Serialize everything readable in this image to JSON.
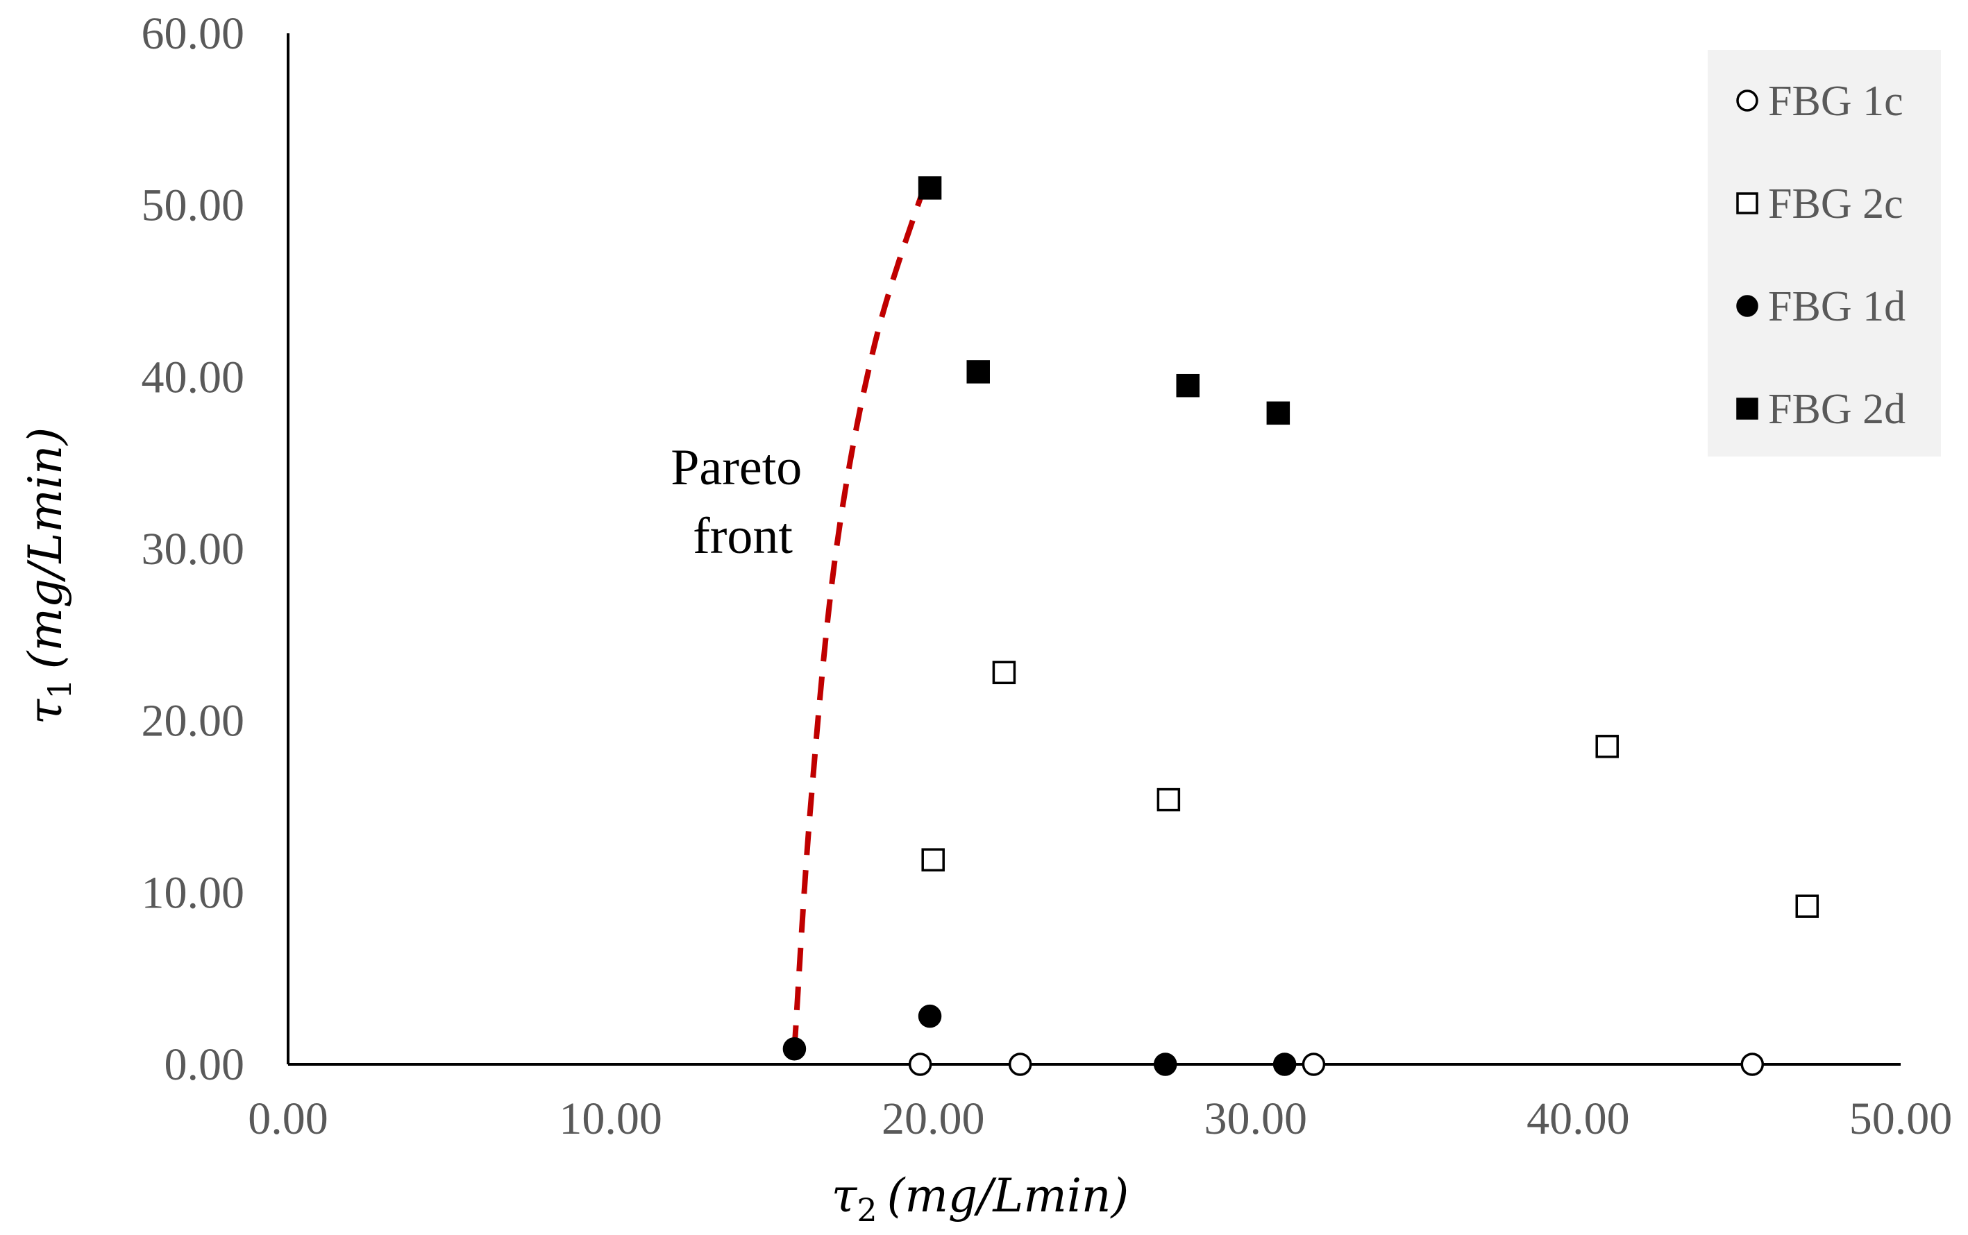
{
  "chart_data": {
    "type": "scatter",
    "title": "",
    "xlabel": "τ₂ (mg/Lmin)",
    "ylabel": "τ₁ (mg/Lmin)",
    "xlabel_parts": {
      "symbol": "τ",
      "sub": "2",
      "unit": "(mg/Lmin)"
    },
    "ylabel_parts": {
      "symbol": "τ",
      "sub": "1",
      "unit": "(mg/Lmin)"
    },
    "xlim": [
      0,
      50
    ],
    "ylim": [
      0,
      60
    ],
    "x_ticks": [
      "0.00",
      "10.00",
      "20.00",
      "30.00",
      "40.00",
      "50.00"
    ],
    "y_ticks": [
      "0.00",
      "10.00",
      "20.00",
      "30.00",
      "40.00",
      "50.00",
      "60.00"
    ],
    "x_tick_values": [
      0,
      10,
      20,
      30,
      40,
      50
    ],
    "y_tick_values": [
      0,
      10,
      20,
      30,
      40,
      50,
      60
    ],
    "grid": false,
    "legend_position": "top-right",
    "series": [
      {
        "name": "FBG 1c",
        "marker": "open-circle",
        "points": [
          [
            19.6,
            0.0
          ],
          [
            22.7,
            0.0
          ],
          [
            31.8,
            0.0
          ],
          [
            45.4,
            0.0
          ]
        ]
      },
      {
        "name": "FBG 2c",
        "marker": "open-square",
        "points": [
          [
            20.0,
            11.9
          ],
          [
            22.2,
            22.8
          ],
          [
            27.3,
            15.4
          ],
          [
            40.9,
            18.5
          ],
          [
            47.1,
            9.2
          ]
        ]
      },
      {
        "name": "FBG 1d",
        "marker": "filled-circle",
        "points": [
          [
            15.7,
            0.9
          ],
          [
            19.9,
            2.8
          ],
          [
            27.2,
            0.0
          ],
          [
            30.9,
            0.0
          ]
        ]
      },
      {
        "name": "FBG 2d",
        "marker": "filled-square",
        "points": [
          [
            19.9,
            51.0
          ],
          [
            21.4,
            40.3
          ],
          [
            27.9,
            39.5
          ],
          [
            30.7,
            37.9
          ]
        ]
      }
    ],
    "pareto_front": {
      "label_lines": [
        "Pareto",
        "front"
      ],
      "color": "#C00000",
      "points": [
        [
          15.7,
          0.9
        ],
        [
          16.2,
          15.0
        ],
        [
          17.0,
          30.0
        ],
        [
          18.2,
          42.0
        ],
        [
          19.8,
          51.5
        ]
      ]
    },
    "colors": {
      "axis": "#000000",
      "tick_text": "#595959",
      "legend_bg": "#F2F2F2",
      "marker": "#000000"
    }
  }
}
